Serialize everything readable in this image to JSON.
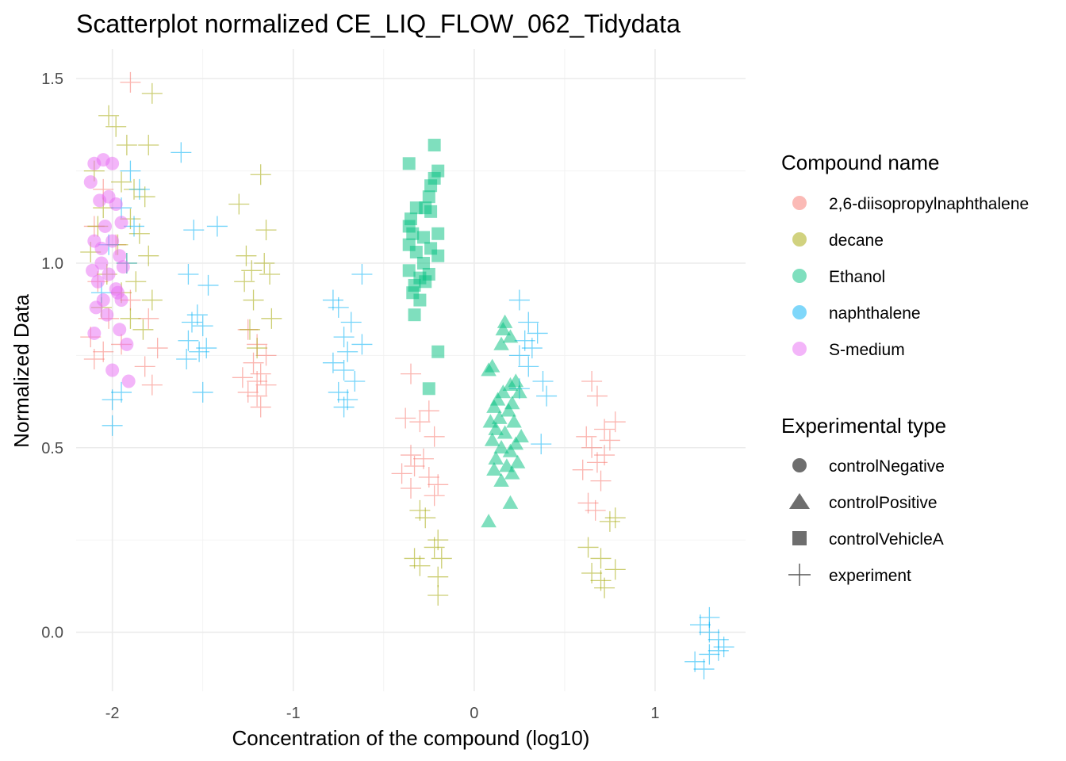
{
  "chart_data": {
    "type": "scatter",
    "title": "Scatterplot normalized CE_LIQ_FLOW_062_Tidydata",
    "xlabel": "Concentration of the compound (log10)",
    "ylabel": "Normalized Data",
    "xlim": [
      -2.2,
      1.5
    ],
    "ylim": [
      -0.16,
      1.58
    ],
    "x_ticks": [
      -2,
      -1,
      0,
      1
    ],
    "y_ticks": [
      0.0,
      0.5,
      1.0,
      1.5
    ],
    "x_tick_labels": [
      "-2",
      "-1",
      "0",
      "1"
    ],
    "y_tick_labels": [
      "0.0",
      "0.5",
      "1.0",
      "1.5"
    ],
    "grid": true,
    "legend_placement": "right",
    "colors": {
      "2,6-diisopropylnaphthalene": "#F8766D",
      "decane": "#A3A500",
      "Ethanol": "#00BF7D",
      "naphthalene": "#00B0F6",
      "S-medium": "#E76BF3"
    },
    "legends": [
      {
        "title": "Compound name",
        "entries": [
          {
            "label": "2,6-diisopropylnaphthalene",
            "color": "#F8766D",
            "shape": "circle"
          },
          {
            "label": "decane",
            "color": "#A3A500",
            "shape": "circle"
          },
          {
            "label": "Ethanol",
            "color": "#00BF7D",
            "shape": "circle"
          },
          {
            "label": "naphthalene",
            "color": "#00B0F6",
            "shape": "circle"
          },
          {
            "label": "S-medium",
            "color": "#E76BF3",
            "shape": "circle"
          }
        ]
      },
      {
        "title": "Experimental type",
        "entries": [
          {
            "label": "controlNegative",
            "color": "#555555",
            "shape": "circle"
          },
          {
            "label": "controlPositive",
            "color": "#555555",
            "shape": "triangle"
          },
          {
            "label": "controlVehicleA",
            "color": "#555555",
            "shape": "square"
          },
          {
            "label": "experiment",
            "color": "#555555",
            "shape": "plus"
          }
        ]
      }
    ],
    "series": [
      {
        "compound": "S-medium",
        "type": "controlNegative",
        "shape": "circle",
        "points": [
          [
            -2.05,
            1.28
          ],
          [
            -2.1,
            1.27
          ],
          [
            -2.0,
            1.27
          ],
          [
            -2.12,
            1.22
          ],
          [
            -2.07,
            1.17
          ],
          [
            -2.02,
            1.18
          ],
          [
            -1.98,
            1.16
          ],
          [
            -1.95,
            1.11
          ],
          [
            -2.04,
            1.1
          ],
          [
            -2.0,
            1.06
          ],
          [
            -2.1,
            1.06
          ],
          [
            -1.96,
            1.02
          ],
          [
            -2.06,
            1.0
          ],
          [
            -2.11,
            0.98
          ],
          [
            -2.02,
            0.97
          ],
          [
            -1.94,
            0.99
          ],
          [
            -2.08,
            0.95
          ],
          [
            -1.98,
            0.93
          ],
          [
            -2.05,
            0.9
          ],
          [
            -1.95,
            0.9
          ],
          [
            -2.09,
            0.88
          ],
          [
            -2.03,
            0.86
          ],
          [
            -1.96,
            0.82
          ],
          [
            -2.1,
            0.81
          ],
          [
            -1.92,
            0.78
          ],
          [
            -2.0,
            0.71
          ],
          [
            -1.91,
            0.68
          ],
          [
            -2.06,
            1.04
          ],
          [
            -1.97,
            0.92
          ]
        ]
      },
      {
        "compound": "Ethanol",
        "type": "controlVehicleA",
        "shape": "square",
        "points": [
          [
            -0.22,
            1.32
          ],
          [
            -0.36,
            1.27
          ],
          [
            -0.2,
            1.25
          ],
          [
            -0.22,
            1.23
          ],
          [
            -0.24,
            1.21
          ],
          [
            -0.25,
            1.18
          ],
          [
            -0.27,
            1.15
          ],
          [
            -0.32,
            1.15
          ],
          [
            -0.24,
            1.14
          ],
          [
            -0.35,
            1.12
          ],
          [
            -0.36,
            1.1
          ],
          [
            -0.34,
            1.08
          ],
          [
            -0.2,
            1.08
          ],
          [
            -0.28,
            1.07
          ],
          [
            -0.36,
            1.05
          ],
          [
            -0.24,
            1.04
          ],
          [
            -0.32,
            1.03
          ],
          [
            -0.2,
            1.02
          ],
          [
            -0.28,
            1.0
          ],
          [
            -0.36,
            0.98
          ],
          [
            -0.25,
            0.97
          ],
          [
            -0.3,
            0.96
          ],
          [
            -0.27,
            0.95
          ],
          [
            -0.33,
            0.94
          ],
          [
            -0.34,
            0.92
          ],
          [
            -0.3,
            0.9
          ],
          [
            -0.33,
            0.86
          ],
          [
            -0.2,
            0.76
          ],
          [
            -0.25,
            0.66
          ]
        ]
      },
      {
        "compound": "Ethanol",
        "type": "controlPositive",
        "shape": "triangle",
        "points": [
          [
            0.17,
            0.84
          ],
          [
            0.16,
            0.82
          ],
          [
            0.2,
            0.8
          ],
          [
            0.15,
            0.78
          ],
          [
            0.1,
            0.72
          ],
          [
            0.08,
            0.71
          ],
          [
            0.23,
            0.68
          ],
          [
            0.2,
            0.67
          ],
          [
            0.25,
            0.65
          ],
          [
            0.16,
            0.65
          ],
          [
            0.13,
            0.63
          ],
          [
            0.21,
            0.62
          ],
          [
            0.11,
            0.61
          ],
          [
            0.19,
            0.6
          ],
          [
            0.14,
            0.58
          ],
          [
            0.09,
            0.57
          ],
          [
            0.22,
            0.57
          ],
          [
            0.12,
            0.55
          ],
          [
            0.17,
            0.54
          ],
          [
            0.26,
            0.53
          ],
          [
            0.1,
            0.52
          ],
          [
            0.23,
            0.51
          ],
          [
            0.15,
            0.5
          ],
          [
            0.2,
            0.49
          ],
          [
            0.12,
            0.47
          ],
          [
            0.24,
            0.46
          ],
          [
            0.18,
            0.45
          ],
          [
            0.11,
            0.44
          ],
          [
            0.21,
            0.43
          ],
          [
            0.15,
            0.41
          ],
          [
            0.2,
            0.35
          ],
          [
            0.08,
            0.3
          ]
        ]
      },
      {
        "compound": "2,6-diisopropylnaphthalene",
        "type": "experiment",
        "shape": "plus",
        "points": [
          [
            -1.9,
            1.49
          ],
          [
            -2.05,
            1.2
          ],
          [
            -2.1,
            1.1
          ],
          [
            -1.98,
            1.05
          ],
          [
            -2.08,
            0.95
          ],
          [
            -1.9,
            0.9
          ],
          [
            -2.02,
            0.85
          ],
          [
            -1.8,
            0.85
          ],
          [
            -2.12,
            0.8
          ],
          [
            -1.95,
            0.78
          ],
          [
            -1.75,
            0.77
          ],
          [
            -2.05,
            0.76
          ],
          [
            -2.1,
            0.74
          ],
          [
            -1.82,
            0.72
          ],
          [
            -1.78,
            0.67
          ],
          [
            -1.25,
            0.82
          ],
          [
            -1.2,
            0.78
          ],
          [
            -1.15,
            0.75
          ],
          [
            -1.22,
            0.73
          ],
          [
            -1.18,
            0.7
          ],
          [
            -1.28,
            0.69
          ],
          [
            -1.2,
            0.68
          ],
          [
            -1.15,
            0.67
          ],
          [
            -1.25,
            0.65
          ],
          [
            -1.2,
            0.64
          ],
          [
            -1.18,
            0.61
          ],
          [
            -0.35,
            0.7
          ],
          [
            -0.25,
            0.6
          ],
          [
            -0.38,
            0.58
          ],
          [
            -0.3,
            0.57
          ],
          [
            -0.22,
            0.53
          ],
          [
            -0.35,
            0.48
          ],
          [
            -0.28,
            0.47
          ],
          [
            -0.33,
            0.45
          ],
          [
            -0.4,
            0.43
          ],
          [
            -0.25,
            0.42
          ],
          [
            -0.2,
            0.4
          ],
          [
            -0.35,
            0.39
          ],
          [
            -0.22,
            0.37
          ],
          [
            0.65,
            0.68
          ],
          [
            0.68,
            0.64
          ],
          [
            0.78,
            0.57
          ],
          [
            0.72,
            0.55
          ],
          [
            0.62,
            0.53
          ],
          [
            0.75,
            0.52
          ],
          [
            0.65,
            0.5
          ],
          [
            0.72,
            0.48
          ],
          [
            0.68,
            0.46
          ],
          [
            0.6,
            0.44
          ],
          [
            0.7,
            0.41
          ],
          [
            0.63,
            0.35
          ],
          [
            0.67,
            0.33
          ]
        ]
      },
      {
        "compound": "decane",
        "type": "experiment",
        "shape": "plus",
        "points": [
          [
            -1.78,
            1.46
          ],
          [
            -2.02,
            1.4
          ],
          [
            -1.98,
            1.37
          ],
          [
            -1.92,
            1.32
          ],
          [
            -1.8,
            1.32
          ],
          [
            -2.1,
            1.25
          ],
          [
            -1.95,
            1.22
          ],
          [
            -1.88,
            1.2
          ],
          [
            -1.82,
            1.18
          ],
          [
            -2.05,
            1.15
          ],
          [
            -1.9,
            1.12
          ],
          [
            -2.08,
            1.1
          ],
          [
            -1.85,
            1.08
          ],
          [
            -1.97,
            1.05
          ],
          [
            -2.12,
            1.03
          ],
          [
            -1.8,
            1.02
          ],
          [
            -1.92,
            1.0
          ],
          [
            -2.03,
            0.97
          ],
          [
            -1.87,
            0.95
          ],
          [
            -1.95,
            0.92
          ],
          [
            -1.78,
            0.9
          ],
          [
            -2.06,
            0.88
          ],
          [
            -1.9,
            0.85
          ],
          [
            -1.83,
            0.82
          ],
          [
            -1.18,
            1.24
          ],
          [
            -1.3,
            1.16
          ],
          [
            -1.15,
            1.09
          ],
          [
            -1.26,
            1.02
          ],
          [
            -1.16,
            1.0
          ],
          [
            -1.23,
            0.98
          ],
          [
            -1.27,
            0.95
          ],
          [
            -1.13,
            0.97
          ],
          [
            -1.22,
            0.9
          ],
          [
            -1.12,
            0.85
          ],
          [
            -1.24,
            0.82
          ],
          [
            -1.2,
            0.77
          ],
          [
            -0.3,
            0.33
          ],
          [
            -0.27,
            0.31
          ],
          [
            -0.2,
            0.25
          ],
          [
            -0.22,
            0.23
          ],
          [
            -0.18,
            0.2
          ],
          [
            -0.33,
            0.2
          ],
          [
            -0.3,
            0.18
          ],
          [
            -0.2,
            0.15
          ],
          [
            -0.2,
            0.1
          ],
          [
            0.78,
            0.31
          ],
          [
            0.75,
            0.3
          ],
          [
            0.63,
            0.23
          ],
          [
            0.7,
            0.2
          ],
          [
            0.78,
            0.17
          ],
          [
            0.65,
            0.16
          ],
          [
            0.7,
            0.14
          ],
          [
            0.72,
            0.12
          ]
        ]
      },
      {
        "compound": "naphthalene",
        "type": "experiment",
        "shape": "plus",
        "points": [
          [
            -1.62,
            1.3
          ],
          [
            -1.9,
            1.25
          ],
          [
            -1.85,
            1.2
          ],
          [
            -1.95,
            1.15
          ],
          [
            -1.88,
            1.1
          ],
          [
            -1.42,
            1.1
          ],
          [
            -1.55,
            1.09
          ],
          [
            -2.02,
            1.05
          ],
          [
            -1.92,
            1.0
          ],
          [
            -1.58,
            0.97
          ],
          [
            -1.47,
            0.94
          ],
          [
            -2.06,
            0.92
          ],
          [
            -1.53,
            0.86
          ],
          [
            -1.56,
            0.84
          ],
          [
            -1.5,
            0.83
          ],
          [
            -1.58,
            0.79
          ],
          [
            -1.48,
            0.77
          ],
          [
            -1.52,
            0.76
          ],
          [
            -1.59,
            0.74
          ],
          [
            -1.5,
            0.65
          ],
          [
            -1.95,
            0.65
          ],
          [
            -2.0,
            0.63
          ],
          [
            -2.0,
            0.56
          ],
          [
            -0.62,
            0.97
          ],
          [
            -0.78,
            0.9
          ],
          [
            -0.75,
            0.88
          ],
          [
            -0.68,
            0.84
          ],
          [
            -0.72,
            0.8
          ],
          [
            -0.62,
            0.78
          ],
          [
            -0.7,
            0.76
          ],
          [
            -0.78,
            0.73
          ],
          [
            -0.72,
            0.71
          ],
          [
            -0.66,
            0.68
          ],
          [
            -0.75,
            0.65
          ],
          [
            -0.7,
            0.63
          ],
          [
            -0.72,
            0.61
          ],
          [
            0.25,
            0.9
          ],
          [
            0.3,
            0.84
          ],
          [
            0.35,
            0.81
          ],
          [
            0.28,
            0.79
          ],
          [
            0.32,
            0.77
          ],
          [
            0.25,
            0.75
          ],
          [
            0.3,
            0.72
          ],
          [
            0.38,
            0.68
          ],
          [
            0.25,
            0.66
          ],
          [
            0.4,
            0.64
          ],
          [
            0.37,
            0.51
          ],
          [
            1.3,
            0.04
          ],
          [
            1.25,
            0.02
          ],
          [
            1.3,
            0.0
          ],
          [
            1.35,
            -0.02
          ],
          [
            1.38,
            -0.04
          ],
          [
            1.35,
            -0.05
          ],
          [
            1.3,
            -0.06
          ],
          [
            1.22,
            -0.08
          ],
          [
            1.27,
            -0.1
          ]
        ]
      }
    ]
  }
}
